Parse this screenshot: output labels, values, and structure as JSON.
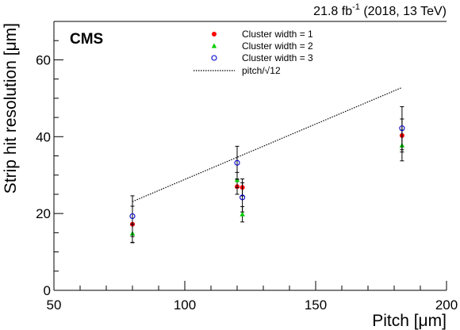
{
  "chart_data": {
    "type": "scatter",
    "experiment_label": "CMS",
    "lumi": {
      "value": "21.8 fb",
      "exponent": "-1",
      "detail": " (2018, 13 TeV)"
    },
    "xlabel": "Pitch [μm]",
    "ylabel": "Strip hit resolution [μm]",
    "xlim": [
      50,
      200
    ],
    "ylim": [
      0,
      70
    ],
    "x_ticks": [
      50,
      100,
      150,
      200
    ],
    "y_ticks": [
      0,
      20,
      40,
      60
    ],
    "legend_position": "top-center",
    "series": [
      {
        "name": "Cluster width = 1",
        "marker": "filled-circle",
        "color": "#ff0000",
        "points": [
          {
            "x": 80,
            "y": 17.2,
            "err": 4.7
          },
          {
            "x": 120,
            "y": 27.0,
            "err": 2.0
          },
          {
            "x": 122,
            "y": 26.8,
            "err": 2.2
          },
          {
            "x": 183,
            "y": 40.3,
            "err": 4.3
          }
        ]
      },
      {
        "name": "Cluster width = 2",
        "marker": "filled-triangle",
        "color": "#00cc00",
        "points": [
          {
            "x": 80,
            "y": 14.8,
            "err": 2.4
          },
          {
            "x": 120,
            "y": 28.7,
            "err": 2.0
          },
          {
            "x": 122,
            "y": 19.8,
            "err": 2.0
          },
          {
            "x": 183,
            "y": 37.7,
            "err": 4.0
          }
        ]
      },
      {
        "name": "Cluster width = 3",
        "marker": "open-circle",
        "color": "#0000cc",
        "points": [
          {
            "x": 80,
            "y": 19.3,
            "err": 5.3
          },
          {
            "x": 120,
            "y": 33.2,
            "err": 4.3
          },
          {
            "x": 122,
            "y": 24.2,
            "err": 3.8
          },
          {
            "x": 183,
            "y": 42.2,
            "err": 5.6
          }
        ]
      }
    ],
    "reference_line": {
      "name": "pitch/√12",
      "style": "dotted",
      "color": "#000000",
      "points": [
        {
          "x": 80,
          "y": 23.1
        },
        {
          "x": 183,
          "y": 52.8
        }
      ]
    }
  }
}
